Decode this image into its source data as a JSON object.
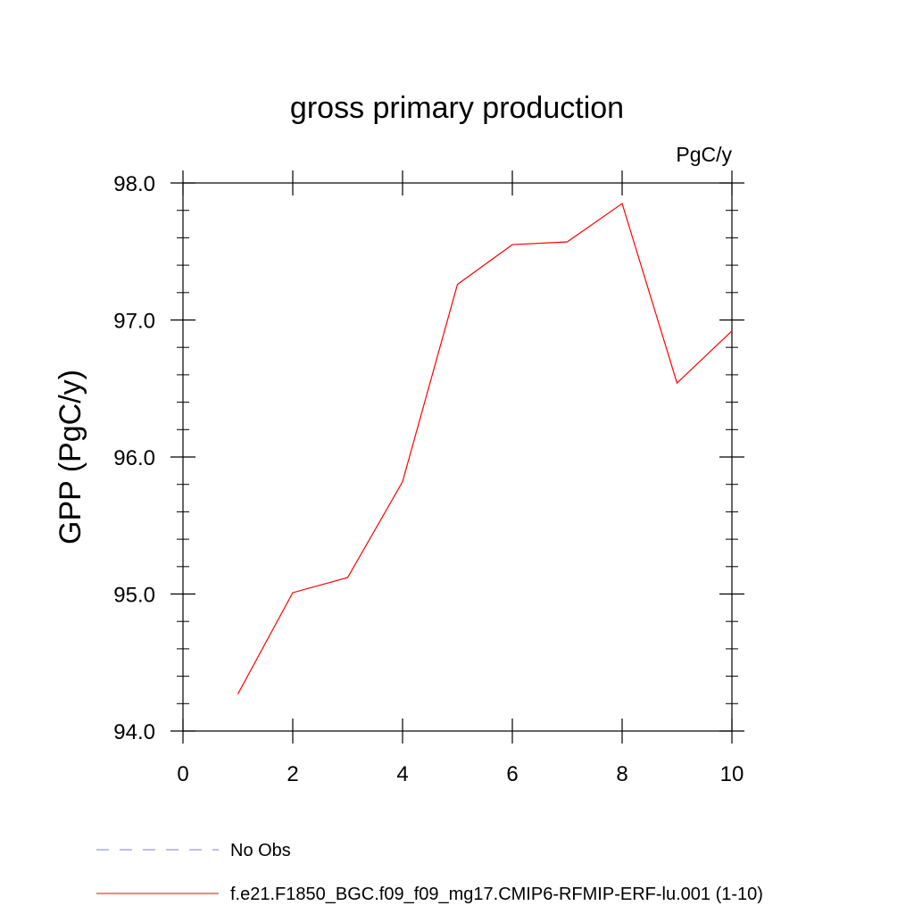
{
  "chart_data": {
    "type": "line",
    "title": "gross primary production",
    "units_label": "PgC/y",
    "ylabel": "GPP  (PgC/y)",
    "xlabel": "",
    "xlim": [
      0,
      10
    ],
    "ylim": [
      94.0,
      98.0
    ],
    "xticks": [
      0,
      2,
      4,
      6,
      8,
      10
    ],
    "xtick_labels": [
      "0",
      "2",
      "4",
      "6",
      "8",
      "10"
    ],
    "yticks": [
      94.0,
      95.0,
      96.0,
      97.0,
      98.0
    ],
    "ytick_labels": [
      "94.0",
      "95.0",
      "96.0",
      "97.0",
      "98.0"
    ],
    "grid": false,
    "legend_position": "bottom",
    "series": [
      {
        "name": "f.e21.F1850_BGC.f09_f09_mg17.CMIP6-RFMIP-ERF-lu.001 (1-10)",
        "color": "#ff0000",
        "dash": "solid",
        "x": [
          1,
          2,
          3,
          4,
          5,
          6,
          7,
          8,
          9,
          10
        ],
        "y": [
          94.27,
          95.01,
          95.12,
          95.82,
          97.26,
          97.55,
          97.57,
          97.85,
          96.54,
          96.92
        ]
      }
    ],
    "legend": [
      {
        "label": "No Obs",
        "color": "#8080c0",
        "dash": "dashed"
      },
      {
        "label": "f.e21.F1850_BGC.f09_f09_mg17.CMIP6-RFMIP-ERF-lu.001 (1-10)",
        "color": "#ff0000",
        "dash": "solid"
      }
    ]
  }
}
